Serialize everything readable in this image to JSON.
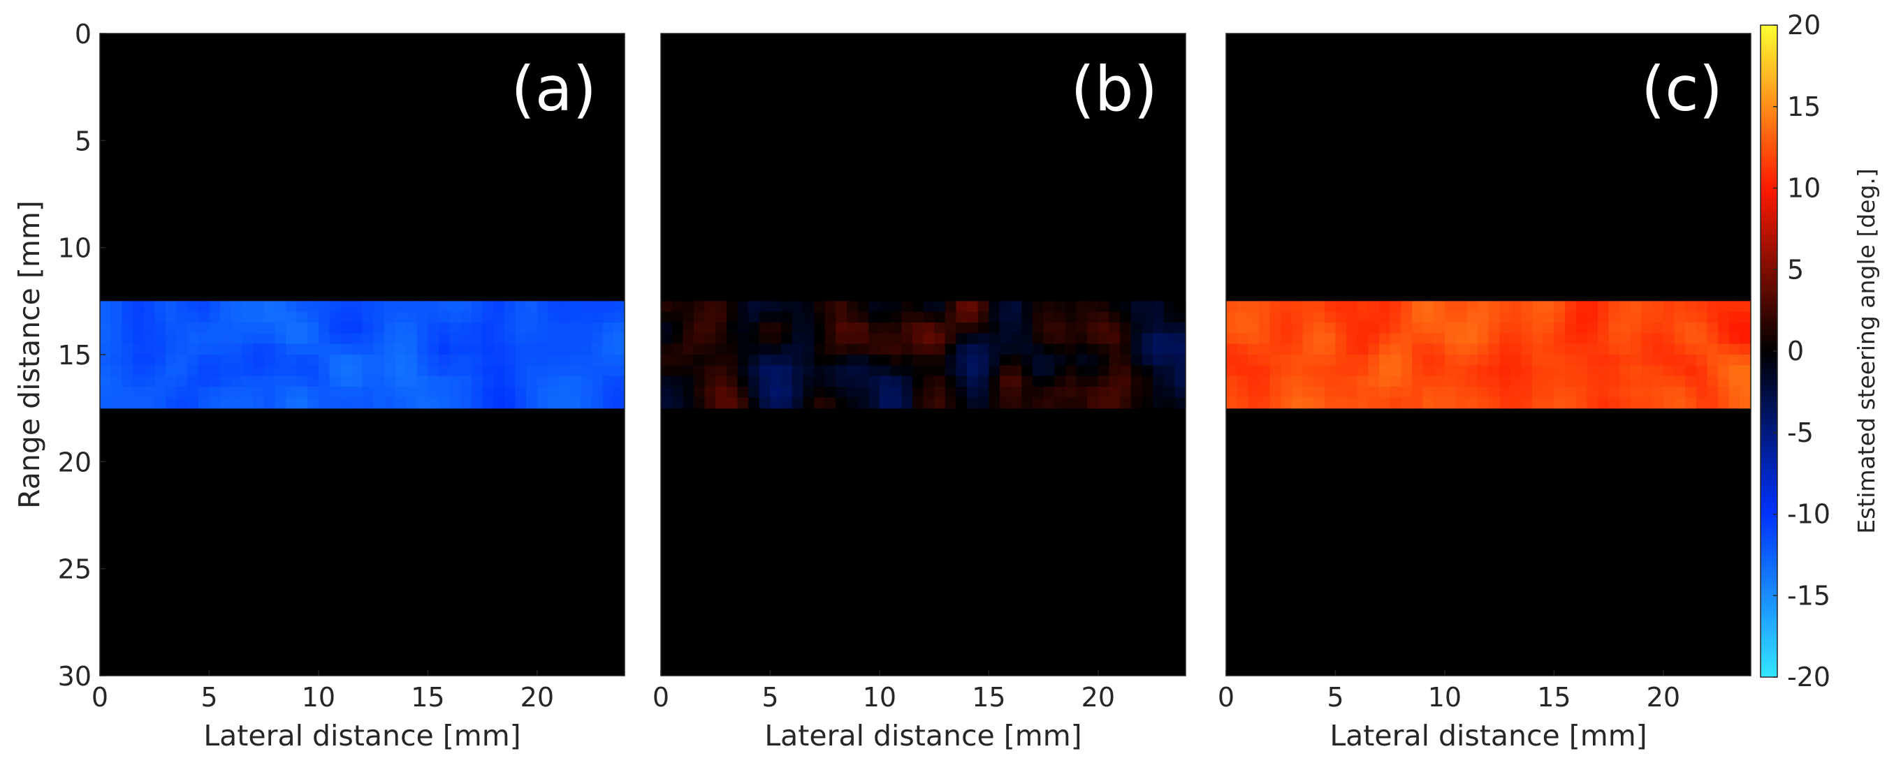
{
  "chart_data": [
    {
      "type": "heatmap",
      "panel": "(a)",
      "xlabel": "Lateral distance [mm]",
      "ylabel": "Range distance [mm]",
      "xlim": [
        0,
        24
      ],
      "ylim": [
        30,
        0
      ],
      "x_ticks": [
        0,
        5,
        10,
        15,
        20
      ],
      "y_ticks": [
        0,
        5,
        10,
        15,
        20,
        25,
        30
      ],
      "background_value": 0,
      "band": {
        "range_mm": [
          12.5,
          17.5
        ],
        "lateral_mm": [
          0,
          24
        ],
        "mean_angle_deg": -12,
        "variation_deg": 2
      }
    },
    {
      "type": "heatmap",
      "panel": "(b)",
      "xlabel": "Lateral distance [mm]",
      "xlim": [
        0,
        24
      ],
      "ylim": [
        30,
        0
      ],
      "x_ticks": [
        0,
        5,
        10,
        15,
        20
      ],
      "background_value": 0,
      "band": {
        "range_mm": [
          12.5,
          17.5
        ],
        "lateral_mm": [
          0,
          24
        ],
        "mean_angle_deg": 0,
        "variation_deg": 5
      }
    },
    {
      "type": "heatmap",
      "panel": "(c)",
      "xlabel": "Lateral distance [mm]",
      "xlim": [
        0,
        24
      ],
      "ylim": [
        30,
        0
      ],
      "x_ticks": [
        0,
        5,
        10,
        15,
        20
      ],
      "background_value": 0,
      "band": {
        "range_mm": [
          12.5,
          17.5
        ],
        "lateral_mm": [
          0,
          24
        ],
        "mean_angle_deg": 12,
        "variation_deg": 2
      }
    }
  ],
  "colorbar": {
    "label": "Estimated steering angle [deg.]",
    "range": [
      -20,
      20
    ],
    "ticks": [
      20,
      15,
      10,
      5,
      0,
      -5,
      -10,
      -15,
      -20
    ],
    "colormap": [
      {
        "value": -20,
        "color": "#33e6ff"
      },
      {
        "value": -10,
        "color": "#0033ff"
      },
      {
        "value": 0,
        "color": "#000000"
      },
      {
        "value": 10,
        "color": "#ff1a00"
      },
      {
        "value": 20,
        "color": "#ffff33"
      }
    ]
  }
}
